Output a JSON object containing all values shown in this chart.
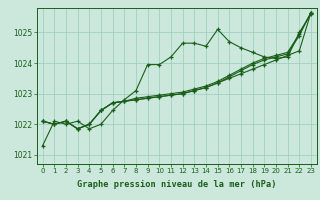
{
  "title": "Graphe pression niveau de la mer (hPa)",
  "background_color": "#cce8dc",
  "grid_color": "#99ccbb",
  "line_color": "#1a5e1a",
  "xlim": [
    -0.5,
    23.5
  ],
  "ylim": [
    1020.7,
    1025.8
  ],
  "yticks": [
    1021,
    1022,
    1023,
    1024,
    1025
  ],
  "xticks": [
    0,
    1,
    2,
    3,
    4,
    5,
    6,
    7,
    8,
    9,
    10,
    11,
    12,
    13,
    14,
    15,
    16,
    17,
    18,
    19,
    20,
    21,
    22,
    23
  ],
  "series": [
    [
      1021.3,
      1022.1,
      1022.0,
      1022.1,
      1021.85,
      1022.0,
      1022.45,
      1022.8,
      1023.1,
      1023.95,
      1023.95,
      1024.2,
      1024.65,
      1024.65,
      1024.55,
      1025.1,
      1024.7,
      1024.5,
      1024.35,
      1024.2,
      1024.15,
      1024.2,
      1025.0,
      1025.6
    ],
    [
      1022.1,
      1022.0,
      1022.1,
      1021.85,
      1022.0,
      1022.45,
      1022.7,
      1022.75,
      1022.8,
      1022.85,
      1022.9,
      1022.95,
      1023.0,
      1023.1,
      1023.2,
      1023.35,
      1023.5,
      1023.65,
      1023.8,
      1023.95,
      1024.1,
      1024.25,
      1024.4,
      1025.65
    ],
    [
      1022.1,
      1022.0,
      1022.1,
      1021.85,
      1022.0,
      1022.45,
      1022.7,
      1022.75,
      1022.8,
      1022.85,
      1022.9,
      1022.95,
      1023.0,
      1023.1,
      1023.2,
      1023.35,
      1023.55,
      1023.75,
      1023.95,
      1024.1,
      1024.2,
      1024.3,
      1024.9,
      1025.65
    ],
    [
      1022.1,
      1022.0,
      1022.1,
      1021.85,
      1022.0,
      1022.45,
      1022.7,
      1022.75,
      1022.85,
      1022.9,
      1022.95,
      1023.0,
      1023.05,
      1023.15,
      1023.25,
      1023.4,
      1023.6,
      1023.8,
      1024.0,
      1024.15,
      1024.25,
      1024.35,
      1024.95,
      1025.65
    ]
  ]
}
